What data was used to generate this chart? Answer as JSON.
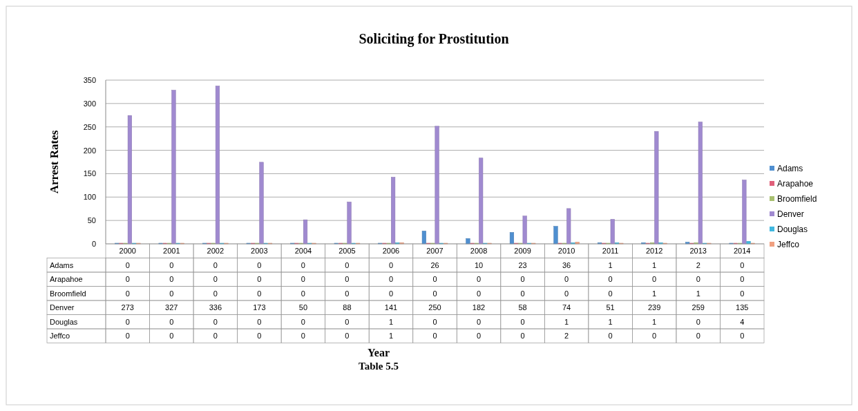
{
  "chart_data": {
    "type": "bar",
    "title": "Soliciting for Prostitution",
    "ylabel": "Arrest Rates",
    "annotations": [
      "Year",
      "Table 5.5"
    ],
    "categories": [
      "2000",
      "2001",
      "2002",
      "2003",
      "2004",
      "2005",
      "2006",
      "2007",
      "2008",
      "2009",
      "2010",
      "2011",
      "2012",
      "2013",
      "2014"
    ],
    "series": [
      {
        "name": "Adams",
        "color": "#4f8fd0",
        "values": [
          0,
          0,
          0,
          0,
          0,
          0,
          0,
          26,
          10,
          23,
          36,
          1,
          1,
          2,
          0
        ]
      },
      {
        "name": "Arapahoe",
        "color": "#e0607a",
        "values": [
          0,
          0,
          0,
          0,
          0,
          0,
          0,
          0,
          0,
          0,
          0,
          0,
          0,
          0,
          0
        ]
      },
      {
        "name": "Broomfield",
        "color": "#a8c070",
        "values": [
          0,
          0,
          0,
          0,
          0,
          0,
          0,
          0,
          0,
          0,
          0,
          0,
          1,
          1,
          0
        ]
      },
      {
        "name": "Denver",
        "color": "#a08ad0",
        "values": [
          273,
          327,
          336,
          173,
          50,
          88,
          141,
          250,
          182,
          58,
          74,
          51,
          239,
          259,
          135
        ]
      },
      {
        "name": "Douglas",
        "color": "#40b8e0",
        "values": [
          0,
          0,
          0,
          0,
          0,
          0,
          1,
          0,
          0,
          0,
          1,
          1,
          1,
          0,
          4
        ]
      },
      {
        "name": "Jeffco",
        "color": "#f0a080",
        "values": [
          0,
          0,
          0,
          0,
          0,
          0,
          1,
          0,
          0,
          0,
          2,
          0,
          0,
          0,
          0
        ]
      }
    ],
    "ylim": [
      0,
      350
    ],
    "yticks": [
      0,
      50,
      100,
      150,
      200,
      250,
      300,
      350
    ],
    "grid": "y",
    "legend": "right",
    "data_labels": true
  }
}
